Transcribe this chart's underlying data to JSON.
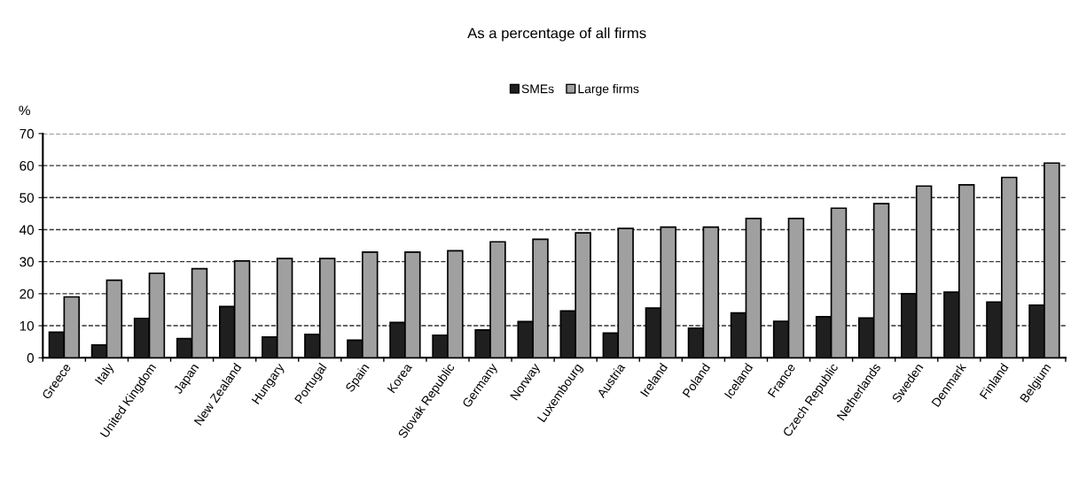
{
  "chart_data": {
    "type": "bar",
    "title": "As a percentage of all firms",
    "ylabel": "%",
    "categories": [
      "Greece",
      "Italy",
      "United Kingdom",
      "Japan",
      "New Zealand",
      "Hungary",
      "Portugal",
      "Spain",
      "Korea",
      "Slovak Republic",
      "Germany",
      "Norway",
      "Luxembourg",
      "Austria",
      "Ireland",
      "Poland",
      "Iceland",
      "France",
      "Czech Republic",
      "Netherlands",
      "Sweden",
      "Denmark",
      "Finland",
      "Belgium"
    ],
    "series": [
      {
        "name": "SMEs",
        "color": "#1f1f1f",
        "values": [
          8,
          4,
          12.3,
          6,
          16,
          6.5,
          7.3,
          5.5,
          11,
          7,
          8.7,
          11.3,
          14.6,
          7.7,
          15.5,
          9.2,
          14,
          11.4,
          12.8,
          12.4,
          20,
          20.5,
          17.4,
          16.4
        ]
      },
      {
        "name": "Large firms",
        "color": "#a0a0a0",
        "values": [
          19,
          24.2,
          26.4,
          27.8,
          30.2,
          31,
          31,
          33,
          33,
          33.4,
          36.2,
          37,
          39,
          40.4,
          40.8,
          40.8,
          43.5,
          43.5,
          46.7,
          48.1,
          53.6,
          54,
          56.3,
          60.8
        ]
      }
    ],
    "ylim": [
      0,
      70
    ],
    "yticks": [
      0,
      10,
      20,
      30,
      40,
      50,
      60,
      70
    ],
    "grid": "y",
    "legend": "top"
  }
}
